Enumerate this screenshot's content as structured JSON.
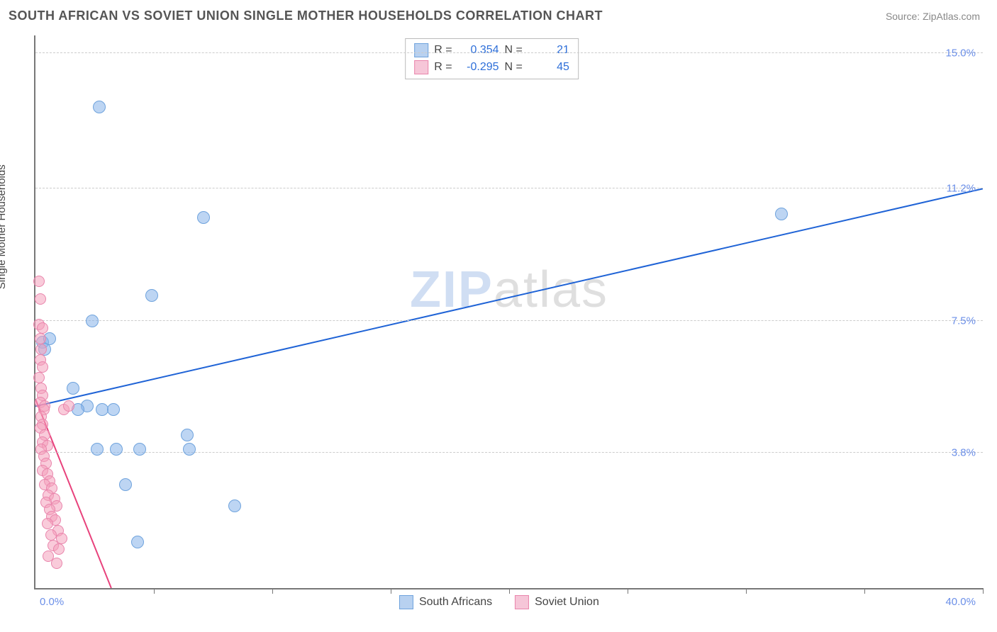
{
  "header": {
    "title": "SOUTH AFRICAN VS SOVIET UNION SINGLE MOTHER HOUSEHOLDS CORRELATION CHART",
    "source": "Source: ZipAtlas.com"
  },
  "chart": {
    "type": "scatter",
    "background_color": "#ffffff",
    "grid_color": "#cccccc",
    "axis_color": "#777777",
    "ylabel": "Single Mother Households",
    "ylabel_fontsize": 15,
    "ylabel_color": "#444444",
    "xlim": [
      0,
      40.0
    ],
    "ylim": [
      0,
      15.5
    ],
    "xtick_positions": [
      0,
      5,
      10,
      15,
      20,
      25,
      30,
      35,
      40
    ],
    "ytick_labels": [
      {
        "v": 3.8,
        "label": "3.8%"
      },
      {
        "v": 7.5,
        "label": "7.5%"
      },
      {
        "v": 11.2,
        "label": "11.2%"
      },
      {
        "v": 15.0,
        "label": "15.0%"
      }
    ],
    "xaxis_min_label": "0.0%",
    "xaxis_max_label": "40.0%",
    "tick_label_color": "#6b8fe8",
    "tick_label_fontsize": 15,
    "watermark": {
      "z": "ZIP",
      "rest": "atlas"
    },
    "series": [
      {
        "name": "South Africans",
        "marker_color_fill": "rgba(135,179,233,0.55)",
        "marker_color_stroke": "#6fa3dd",
        "marker_radius": 9,
        "trend_color": "#1f63d6",
        "trend_width": 2,
        "trend": {
          "x1": 0,
          "y1": 5.1,
          "x2": 40,
          "y2": 11.2
        },
        "stats": {
          "R": "0.354",
          "N": "21"
        },
        "swatch_fill": "#b8d1f0",
        "swatch_stroke": "#6fa3dd",
        "points": [
          [
            0.3,
            6.9
          ],
          [
            0.4,
            6.7
          ],
          [
            0.6,
            7.0
          ],
          [
            1.6,
            5.6
          ],
          [
            2.4,
            7.5
          ],
          [
            2.7,
            13.5
          ],
          [
            2.2,
            5.1
          ],
          [
            1.8,
            5.0
          ],
          [
            2.8,
            5.0
          ],
          [
            3.3,
            5.0
          ],
          [
            4.9,
            8.2
          ],
          [
            3.8,
            2.9
          ],
          [
            2.6,
            3.9
          ],
          [
            3.4,
            3.9
          ],
          [
            4.4,
            3.9
          ],
          [
            4.3,
            1.3
          ],
          [
            6.4,
            4.3
          ],
          [
            6.5,
            3.9
          ],
          [
            7.1,
            10.4
          ],
          [
            8.4,
            2.3
          ],
          [
            31.5,
            10.5
          ]
        ]
      },
      {
        "name": "Soviet Union",
        "marker_color_fill": "rgba(244,160,188,0.55)",
        "marker_color_stroke": "#e985ac",
        "marker_radius": 8,
        "trend_color": "#e8427c",
        "trend_width": 2,
        "trend": {
          "x1": 0,
          "y1": 5.3,
          "x2": 3.2,
          "y2": 0
        },
        "stats": {
          "R": "-0.295",
          "N": "45"
        },
        "swatch_fill": "#f6c6d8",
        "swatch_stroke": "#e985ac",
        "points": [
          [
            0.15,
            8.6
          ],
          [
            0.2,
            8.1
          ],
          [
            0.15,
            7.4
          ],
          [
            0.3,
            7.3
          ],
          [
            0.2,
            7.0
          ],
          [
            0.25,
            6.7
          ],
          [
            0.2,
            6.4
          ],
          [
            0.3,
            6.2
          ],
          [
            0.15,
            5.9
          ],
          [
            0.25,
            5.6
          ],
          [
            0.3,
            5.4
          ],
          [
            0.2,
            5.2
          ],
          [
            0.4,
            5.1
          ],
          [
            0.35,
            5.0
          ],
          [
            0.25,
            4.8
          ],
          [
            0.3,
            4.6
          ],
          [
            0.2,
            4.5
          ],
          [
            0.4,
            4.3
          ],
          [
            0.3,
            4.1
          ],
          [
            0.5,
            4.0
          ],
          [
            0.25,
            3.9
          ],
          [
            0.35,
            3.7
          ],
          [
            0.45,
            3.5
          ],
          [
            0.3,
            3.3
          ],
          [
            0.5,
            3.2
          ],
          [
            0.6,
            3.0
          ],
          [
            0.4,
            2.9
          ],
          [
            0.7,
            2.8
          ],
          [
            0.55,
            2.6
          ],
          [
            0.8,
            2.5
          ],
          [
            0.45,
            2.4
          ],
          [
            0.9,
            2.3
          ],
          [
            0.6,
            2.2
          ],
          [
            0.7,
            2.0
          ],
          [
            0.85,
            1.9
          ],
          [
            0.5,
            1.8
          ],
          [
            0.95,
            1.6
          ],
          [
            0.65,
            1.5
          ],
          [
            1.1,
            1.4
          ],
          [
            0.75,
            1.2
          ],
          [
            1.0,
            1.1
          ],
          [
            0.55,
            0.9
          ],
          [
            0.9,
            0.7
          ],
          [
            1.2,
            5.0
          ],
          [
            1.4,
            5.1
          ]
        ]
      }
    ],
    "legend": {
      "items": [
        {
          "label": "South Africans",
          "fill": "#b8d1f0",
          "stroke": "#6fa3dd"
        },
        {
          "label": "Soviet Union",
          "fill": "#f6c6d8",
          "stroke": "#e985ac"
        }
      ],
      "fontsize": 16
    },
    "stats_box": {
      "border_color": "#bbbbbb",
      "label_color": "#444444",
      "value_color": "#2e6fd9",
      "fontsize": 16
    }
  }
}
